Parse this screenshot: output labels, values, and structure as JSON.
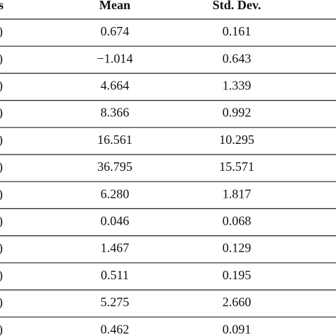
{
  "table": {
    "header": [
      "s",
      "Mean",
      "Std. Dev."
    ],
    "rows": [
      [
        ")",
        "0.674",
        "0.161"
      ],
      [
        ")",
        "−1.014",
        "0.643"
      ],
      [
        ")",
        "4.664",
        "1.339"
      ],
      [
        ")",
        "8.366",
        "0.992"
      ],
      [
        ")",
        "16.561",
        "10.295"
      ],
      [
        ")",
        "36.795",
        "15.571"
      ],
      [
        ")",
        "6.280",
        "1.817"
      ],
      [
        ")",
        "0.046",
        "0.068"
      ],
      [
        ")",
        "1.467",
        "0.129"
      ],
      [
        ")",
        "0.511",
        "0.195"
      ],
      [
        ")",
        "5.275",
        "2.660"
      ],
      [
        ")",
        "0.462",
        "0.091"
      ]
    ]
  }
}
